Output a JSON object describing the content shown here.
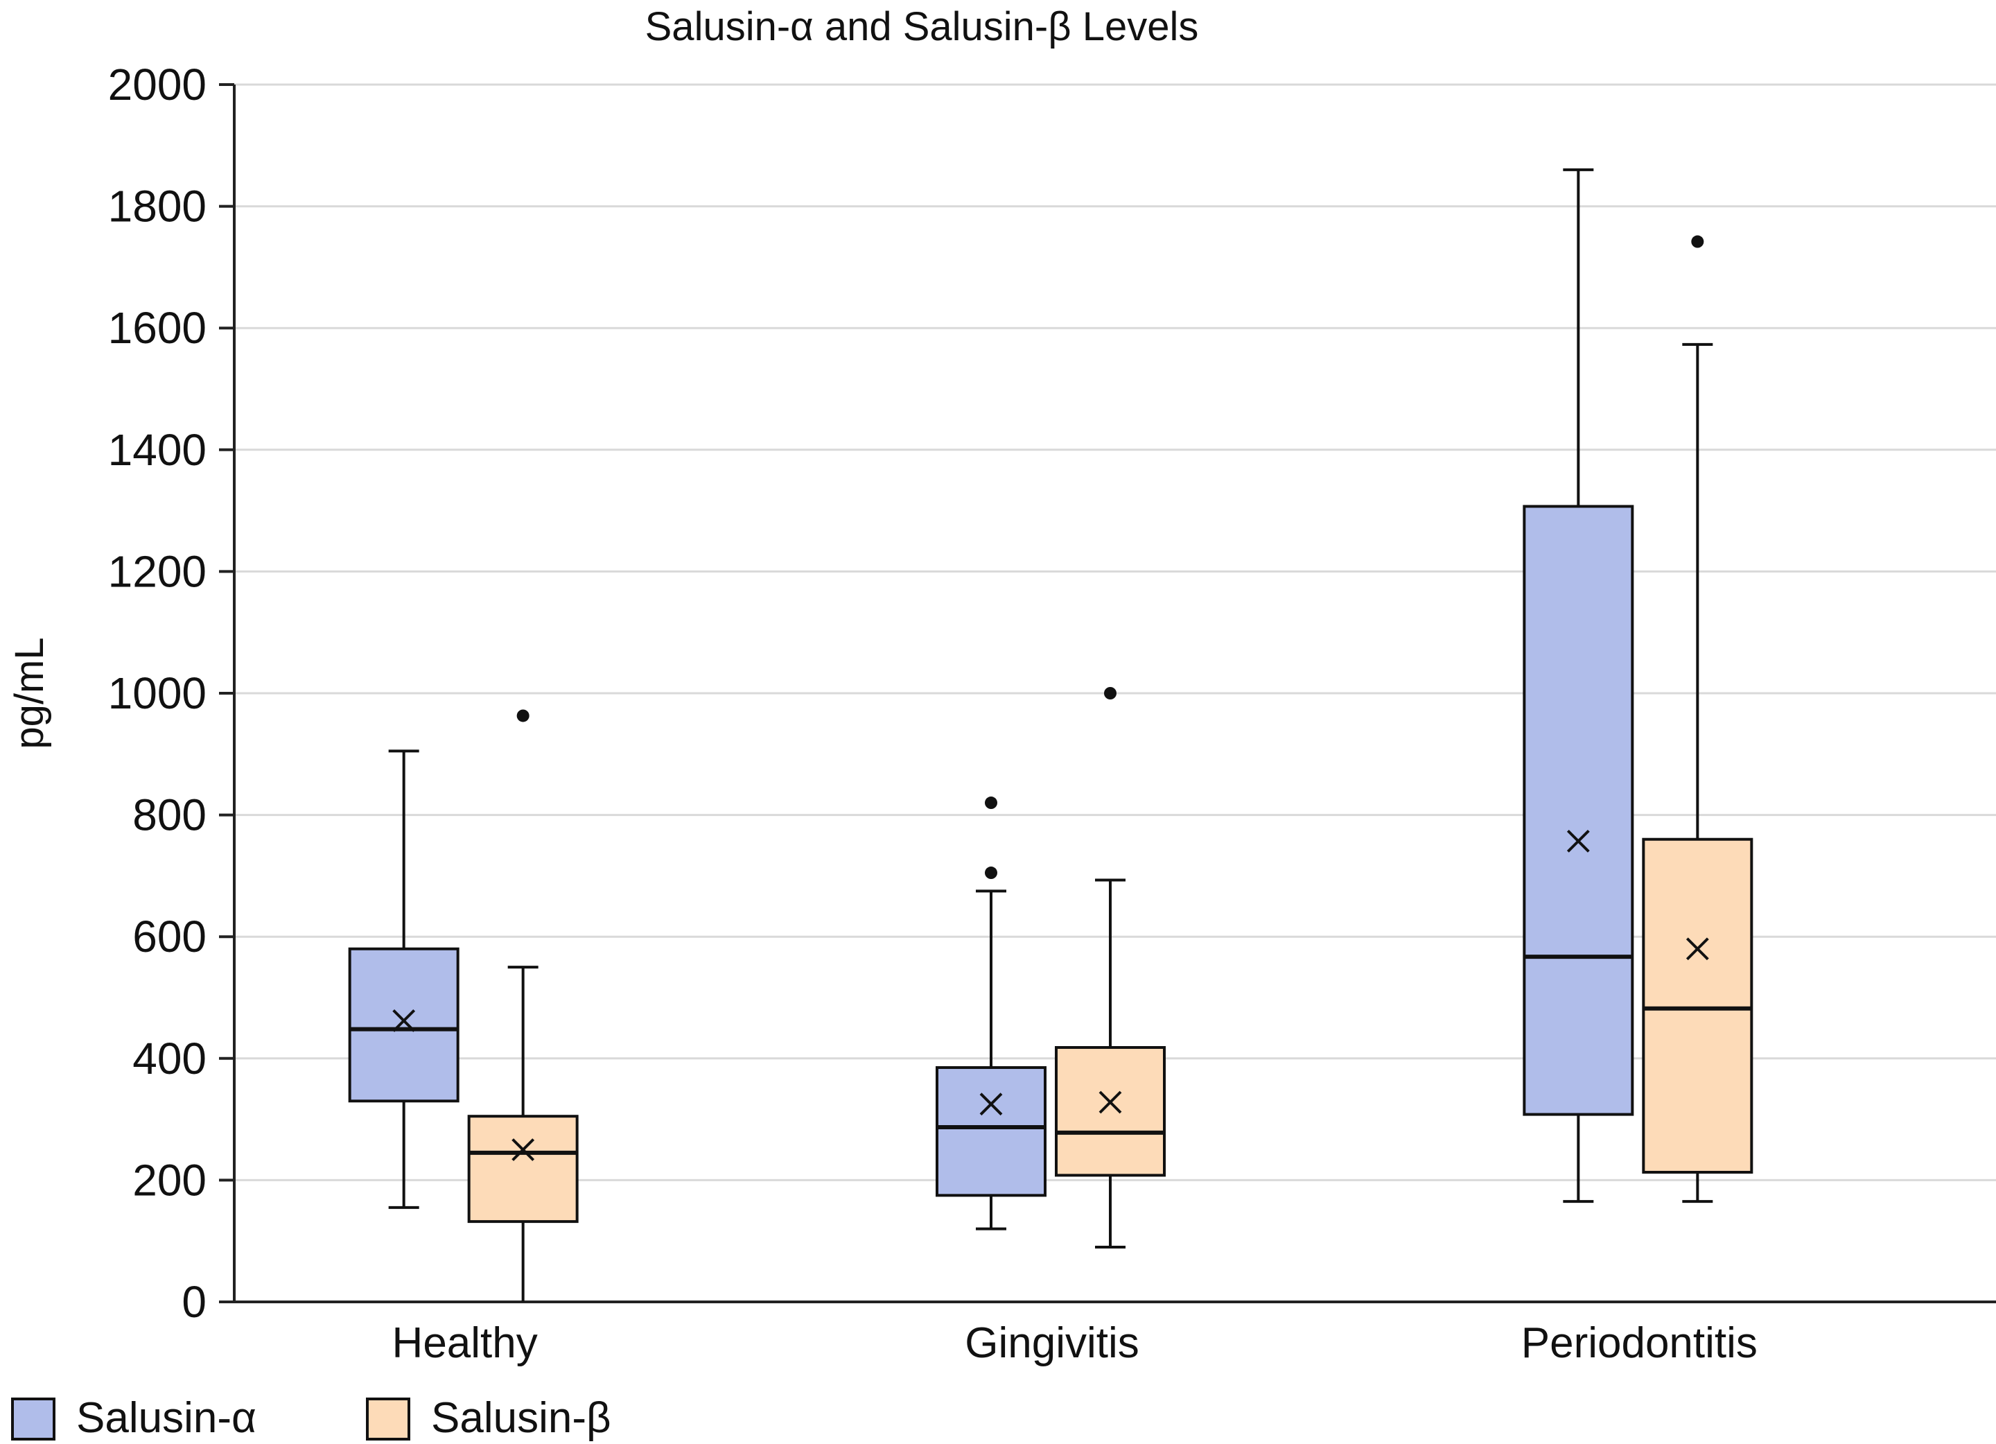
{
  "chart_data": {
    "type": "boxplot",
    "title": "Salusin-α and Salusin-β Levels",
    "xlabel": "",
    "ylabel": "pg/mL",
    "ylim": [
      0,
      2000
    ],
    "yticks": [
      0,
      200,
      400,
      600,
      800,
      1000,
      1200,
      1400,
      1600,
      1800,
      2000
    ],
    "grid": true,
    "legend_position": "bottom-left",
    "categories": [
      "Healthy",
      "Gingivitis",
      "Periodontitis"
    ],
    "series": [
      {
        "name": "Salusin-α",
        "color": "#b0bdea",
        "boxes": [
          {
            "whisker_low": 155,
            "q1": 330,
            "median": 448,
            "q3": 580,
            "whisker_high": 905,
            "mean": 462,
            "outliers": []
          },
          {
            "whisker_low": 120,
            "q1": 175,
            "median": 287,
            "q3": 385,
            "whisker_high": 675,
            "mean": 325,
            "outliers": [
              705,
              820
            ]
          },
          {
            "whisker_low": 165,
            "q1": 308,
            "median": 567,
            "q3": 1307,
            "whisker_high": 1860,
            "mean": 757,
            "outliers": []
          }
        ]
      },
      {
        "name": "Salusin-β",
        "color": "#fddbb8",
        "boxes": [
          {
            "whisker_low": 0,
            "q1": 132,
            "median": 245,
            "q3": 305,
            "whisker_high": 550,
            "mean": 250,
            "outliers": [
              963
            ]
          },
          {
            "whisker_low": 90,
            "q1": 208,
            "median": 278,
            "q3": 418,
            "whisker_high": 693,
            "mean": 328,
            "outliers": [
              1000
            ]
          },
          {
            "whisker_low": 165,
            "q1": 213,
            "median": 482,
            "q3": 760,
            "whisker_high": 1573,
            "mean": 580,
            "outliers": [
              1742
            ]
          }
        ]
      }
    ]
  }
}
